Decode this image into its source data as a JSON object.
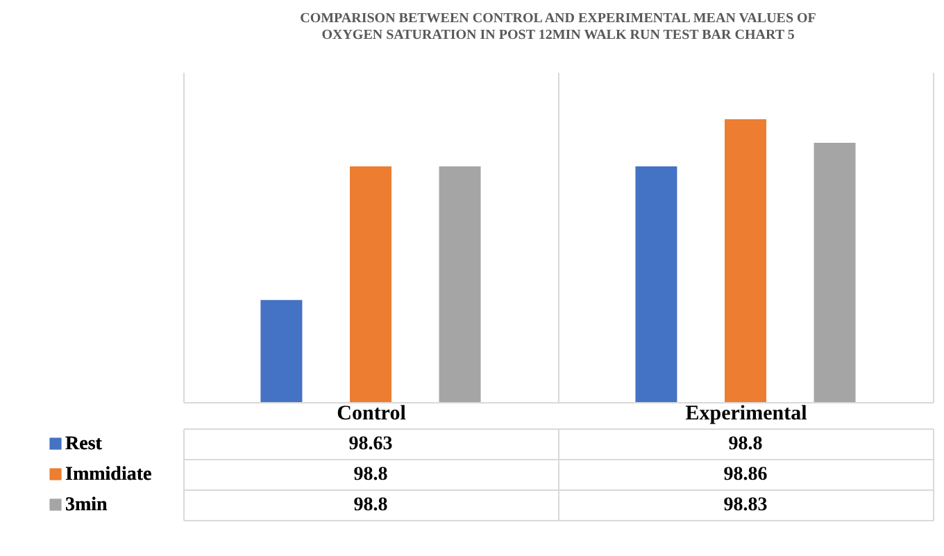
{
  "chart_data": {
    "type": "bar",
    "title": "COMPARISON BETWEEN CONTROL AND EXPERIMENTAL MEAN VALUES OF OXYGEN SATURATION IN POST 12MIN WALK RUN TEST BAR CHART 5",
    "categories": [
      "Control",
      "Experimental"
    ],
    "series": [
      {
        "name": "Rest",
        "color": "#4472c4",
        "values": [
          98.63,
          98.8
        ]
      },
      {
        "name": "Immidiate",
        "color": "#ed7d31",
        "values": [
          98.8,
          98.86
        ]
      },
      {
        "name": "3min",
        "color": "#a5a5a5",
        "values": [
          98.8,
          98.83
        ]
      }
    ],
    "ylim": [
      98.5,
      98.92
    ],
    "tick_labels": "x",
    "grid": "x",
    "legend": "bottom",
    "data_labels": true
  }
}
